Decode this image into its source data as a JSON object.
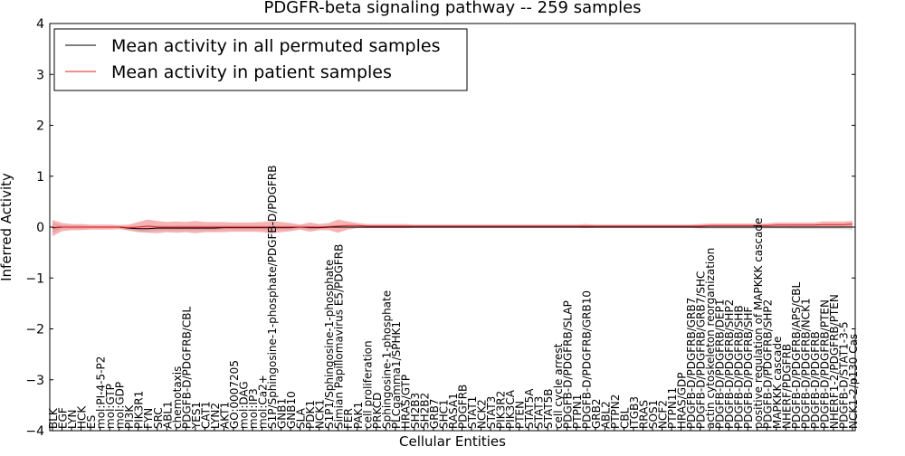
{
  "chart_data": {
    "type": "line",
    "title": "PDGFR-beta signaling pathway -- 259 samples",
    "xlabel": "Cellular Entities",
    "ylabel": "Inferred Activity",
    "ylim": [
      -4,
      4
    ],
    "yticks": [
      "4",
      "3",
      "2",
      "1",
      "0",
      "−1",
      "−2",
      "−3",
      "−4"
    ],
    "grid": false,
    "legend_position": "top-left",
    "colors": {
      "permuted_line": "#000000",
      "permuted_band": "#c8c8d2",
      "patient_line": "#e02020",
      "patient_band": "#f08080"
    },
    "categories": [
      "BLK",
      "EGF",
      "LYN",
      "HCK",
      "ES",
      "mol:PI-4-5-P2",
      "mol:GTP",
      "mol:GDP",
      "PI3K",
      "PIK3R1",
      "FYN",
      "SRC",
      "ABL1",
      "chemotaxis",
      "PDGFB-D/PDGFRB/CBL",
      "YES1",
      "CAT1",
      "LYN2",
      "AKT1",
      "GO:0007205",
      "mol:DAG",
      "mol:IP3",
      "mol:Ca2+",
      "S1P/Sphingosine-1-phosphate/PDGFB-D/PDGFRB",
      "GNB1",
      "GNB10",
      "SLA",
      "PDK1",
      "NCK1",
      "S1P1/Sphingosine-1-phosphate",
      "Simian Papillomavirus E5/PDGFRB",
      "FER",
      "PAK1",
      "cell proliferation",
      "PRKCD",
      "Sphingosine-1-phosphate",
      "PLCgamma1/SPHK1",
      "HRAS/GTP",
      "SH2B3",
      "SH2B2",
      "GRB7",
      "SHC1",
      "RASA1",
      "PDGFRB",
      "STAT1",
      "NCK2",
      "STAT3",
      "PIK3R2",
      "PIK3CA",
      "PTEN",
      "STAT5A",
      "STAT3",
      "STAT5B",
      "cell cycle arrest",
      "PDGFB-D/PDGFRB/SLAP",
      "PTPN1",
      "PDGFB-D/PDGFRB/GRB10",
      "GRB2",
      "ABL2",
      "PTPN2",
      "CBL",
      "ITGB3",
      "RRAS",
      "SOS1",
      "NCF2",
      "PTPN11",
      "HRAS/GDP",
      "PDGFB-D/PDGFRB/GRB7",
      "PDGFB-D/PDGFRB/GRB7/SHC",
      "actin cytoskeleton reorganization",
      "PDGFB-D/PDGFRB/DEP1",
      "PDGFB-D/PDGFRB/SHP2",
      "PDGFB-D/PDGFRB/SHB",
      "PDGFB-D/PDGFRB/SHF",
      "positive regulation of MAPKKK cascade",
      "PDGFB-D/PDGFRB/SHP2",
      "MAPKKK cascade",
      "NHERF/PDGFRB",
      "PDGFB-D/PDGFRB/APS/CBL",
      "PDGFB-D/PDGFRB/NCK1",
      "PDGFB-D/PDGFRB",
      "PDGFB-D/PDGFRB/PTEN",
      "NHERF1-2/PDGFRB/PTEN",
      "PDGFB-D/STAT1-3-5",
      "NCK1-2/p130 Cas"
    ],
    "series": [
      {
        "name": "Mean activity in all permuted samples",
        "values": [
          -0.01,
          0.0,
          0.0,
          0.0,
          0.0,
          0.0,
          0.0,
          0.0,
          -0.02,
          -0.03,
          -0.03,
          -0.02,
          -0.02,
          -0.02,
          -0.02,
          -0.02,
          -0.02,
          -0.02,
          -0.01,
          -0.01,
          -0.01,
          -0.01,
          -0.01,
          -0.01,
          -0.01,
          -0.01,
          0.0,
          -0.01,
          -0.01,
          0.0,
          0.0,
          0.0,
          0.0,
          0.0,
          0.0,
          0.0,
          0.0,
          0.0,
          0.0,
          0.0,
          0.0,
          0.0,
          0.0,
          0.0,
          0.0,
          0.0,
          0.0,
          0.0,
          0.0,
          0.0,
          0.0,
          0.0,
          0.0,
          0.0,
          0.0,
          0.0,
          0.0,
          0.0,
          0.0,
          0.0,
          0.0,
          0.0,
          0.0,
          0.0,
          0.0,
          0.0,
          0.0,
          0.0,
          0.0,
          0.0,
          0.0,
          0.0,
          0.0,
          0.0,
          0.0,
          0.0,
          0.0,
          0.0,
          0.0,
          0.0,
          0.0,
          0.0,
          0.0,
          0.0,
          0.0
        ],
        "spread": [
          0.1,
          0.03,
          0.03,
          0.03,
          0.02,
          0.02,
          0.02,
          0.02,
          0.04,
          0.05,
          0.06,
          0.05,
          0.05,
          0.05,
          0.05,
          0.05,
          0.05,
          0.05,
          0.04,
          0.04,
          0.04,
          0.04,
          0.04,
          0.04,
          0.04,
          0.04,
          0.03,
          0.04,
          0.03,
          0.02,
          0.02,
          0.02,
          0.02,
          0.02,
          0.02,
          0.02,
          0.02,
          0.02,
          0.02,
          0.02,
          0.02,
          0.02,
          0.02,
          0.02,
          0.02,
          0.02,
          0.02,
          0.02,
          0.02,
          0.02,
          0.02,
          0.02,
          0.02,
          0.02,
          0.02,
          0.02,
          0.02,
          0.02,
          0.02,
          0.02,
          0.02,
          0.02,
          0.02,
          0.02,
          0.02,
          0.02,
          0.02,
          0.02,
          0.03,
          0.03,
          0.03,
          0.03,
          0.03,
          0.03,
          0.03,
          0.03,
          0.03,
          0.03,
          0.04,
          0.04,
          0.04,
          0.04,
          0.04,
          0.04,
          0.05
        ]
      },
      {
        "name": "Mean activity in patient samples",
        "values": [
          -0.02,
          0.0,
          0.0,
          0.0,
          0.0,
          0.0,
          0.0,
          0.0,
          -0.01,
          0.0,
          0.02,
          0.0,
          0.0,
          0.0,
          0.0,
          0.0,
          0.0,
          0.0,
          0.0,
          0.0,
          0.0,
          0.0,
          0.0,
          0.0,
          0.0,
          0.0,
          0.0,
          0.0,
          0.0,
          0.01,
          0.02,
          0.03,
          0.03,
          0.02,
          0.02,
          0.02,
          0.02,
          0.02,
          0.02,
          0.02,
          0.02,
          0.02,
          0.02,
          0.02,
          0.02,
          0.02,
          0.02,
          0.02,
          0.02,
          0.02,
          0.02,
          0.02,
          0.02,
          0.02,
          0.02,
          0.02,
          0.02,
          0.02,
          0.02,
          0.02,
          0.02,
          0.02,
          0.02,
          0.02,
          0.02,
          0.02,
          0.02,
          0.02,
          0.02,
          0.03,
          0.03,
          0.03,
          0.03,
          0.03,
          0.03,
          0.03,
          0.04,
          0.04,
          0.04,
          0.04,
          0.04,
          0.05,
          0.05,
          0.05,
          0.06
        ],
        "spread": [
          0.16,
          0.08,
          0.06,
          0.06,
          0.05,
          0.05,
          0.05,
          0.04,
          0.06,
          0.1,
          0.13,
          0.12,
          0.1,
          0.11,
          0.1,
          0.12,
          0.1,
          0.1,
          0.1,
          0.09,
          0.09,
          0.09,
          0.1,
          0.12,
          0.1,
          0.08,
          0.05,
          0.09,
          0.06,
          0.07,
          0.13,
          0.08,
          0.05,
          0.04,
          0.04,
          0.04,
          0.04,
          0.04,
          0.03,
          0.03,
          0.03,
          0.03,
          0.03,
          0.03,
          0.03,
          0.03,
          0.03,
          0.03,
          0.03,
          0.03,
          0.03,
          0.03,
          0.03,
          0.03,
          0.03,
          0.03,
          0.04,
          0.03,
          0.03,
          0.03,
          0.03,
          0.03,
          0.03,
          0.03,
          0.03,
          0.03,
          0.03,
          0.03,
          0.04,
          0.04,
          0.04,
          0.04,
          0.04,
          0.04,
          0.04,
          0.04,
          0.05,
          0.05,
          0.05,
          0.05,
          0.05,
          0.06,
          0.06,
          0.06,
          0.06
        ]
      }
    ]
  }
}
